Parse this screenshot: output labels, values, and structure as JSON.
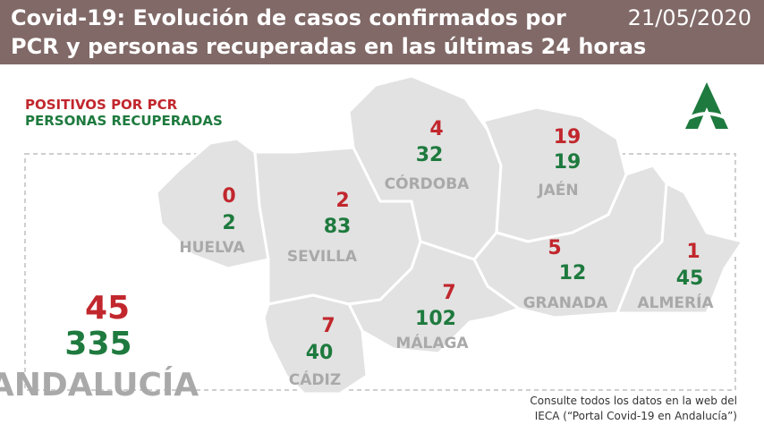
{
  "header": {
    "title_line1": "Covid-19: Evolución de casos confirmados por",
    "title_line2": "PCR y personas recuperadas en las últimas 24 horas",
    "date": "21/05/2020"
  },
  "legend": {
    "positives": "POSITIVOS POR PCR",
    "recovered": "PERSONAS RECUPERADAS"
  },
  "provinces": [
    {
      "name": "HUELVA",
      "positives": "0",
      "recovered": "2"
    },
    {
      "name": "SEVILLA",
      "positives": "2",
      "recovered": "83"
    },
    {
      "name": "CÓRDOBA",
      "positives": "4",
      "recovered": "32"
    },
    {
      "name": "JAÉN",
      "positives": "19",
      "recovered": "19"
    },
    {
      "name": "GRANADA",
      "positives": "5",
      "recovered": "12"
    },
    {
      "name": "ALMERÍA",
      "positives": "1",
      "recovered": "45"
    },
    {
      "name": "MÁLAGA",
      "positives": "7",
      "recovered": "102"
    },
    {
      "name": "CÁDIZ",
      "positives": "7",
      "recovered": "40"
    }
  ],
  "total": {
    "name": "ANDALUCÍA",
    "positives": "45",
    "recovered": "335"
  },
  "footer": {
    "line1": "Consulte todos los datos en la web del",
    "line2": "IECA (“Portal Covid-19 en Andalucía”)"
  }
}
